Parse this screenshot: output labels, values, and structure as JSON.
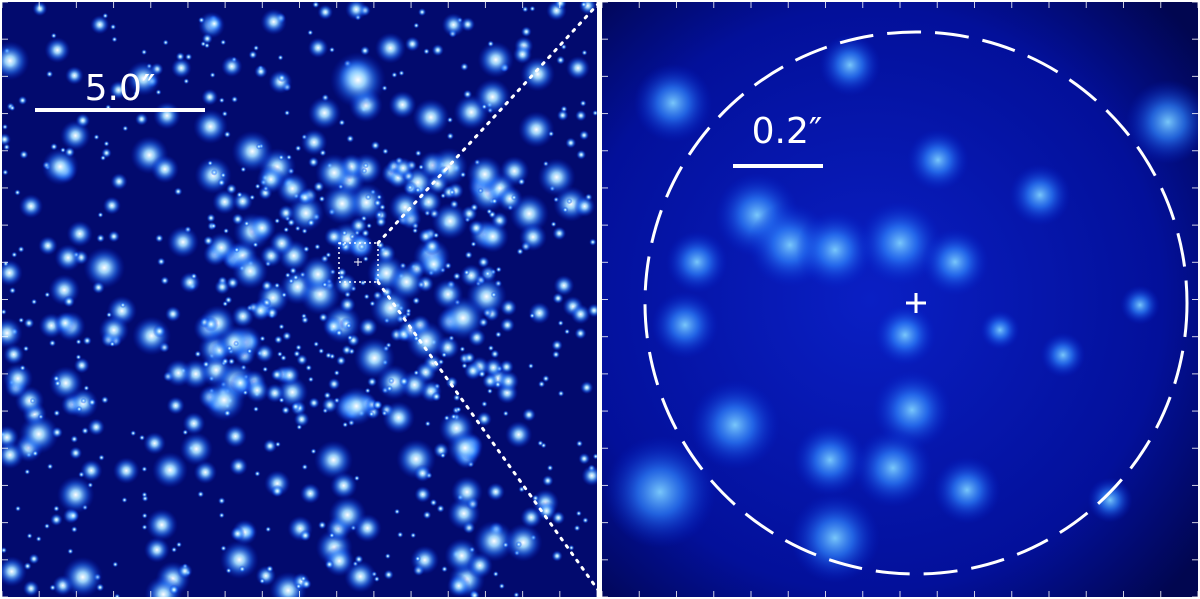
{
  "left_panel": {
    "scale_label": "5.0″"
  },
  "right_panel": {
    "scale_label": "0.2″"
  }
}
